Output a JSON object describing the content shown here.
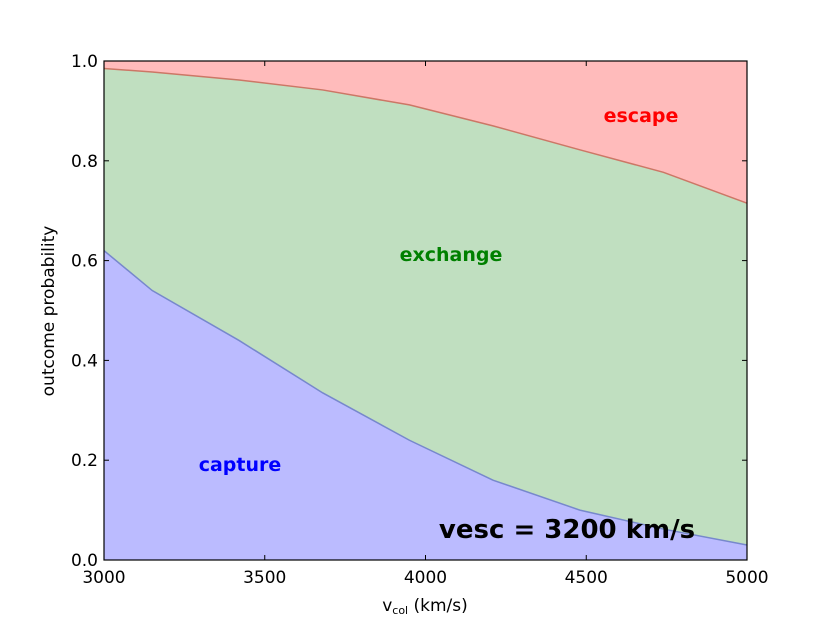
{
  "chart_data": {
    "type": "area",
    "stacked": true,
    "title": "",
    "xlabel_main": "v",
    "xlabel_sub": "col",
    "xlabel_unit": " (km/s)",
    "ylabel": "outcome probability",
    "xlim": [
      3000,
      5000
    ],
    "ylim": [
      0.0,
      1.0
    ],
    "grid": false,
    "x_ticks": [
      "3000",
      "3500",
      "4000",
      "4500",
      "5000"
    ],
    "y_ticks": [
      "0.0",
      "0.2",
      "0.4",
      "0.6",
      "0.8",
      "1.0"
    ],
    "x": [
      3000,
      3150,
      3420,
      3680,
      3950,
      4210,
      4480,
      4740,
      5000
    ],
    "series": [
      {
        "name": "capture",
        "color": "#bbbbff",
        "line_color": "#7788cc",
        "label_color": "#0000ff",
        "values": [
          0.62,
          0.54,
          0.44,
          0.335,
          0.24,
          0.16,
          0.1,
          0.062,
          0.03
        ]
      },
      {
        "name": "exchange",
        "color": "#c0dfc0",
        "line_color": "#cc7766",
        "label_color": "#008000",
        "values": [
          0.365,
          0.438,
          0.522,
          0.607,
          0.672,
          0.71,
          0.722,
          0.715,
          0.685
        ]
      },
      {
        "name": "escape",
        "color": "#ffbbbb",
        "label_color": "#ff0000",
        "values": [
          0.015,
          0.022,
          0.038,
          0.058,
          0.088,
          0.13,
          0.178,
          0.223,
          0.285
        ]
      }
    ],
    "annotation": "vesc = 3200 km/s"
  }
}
